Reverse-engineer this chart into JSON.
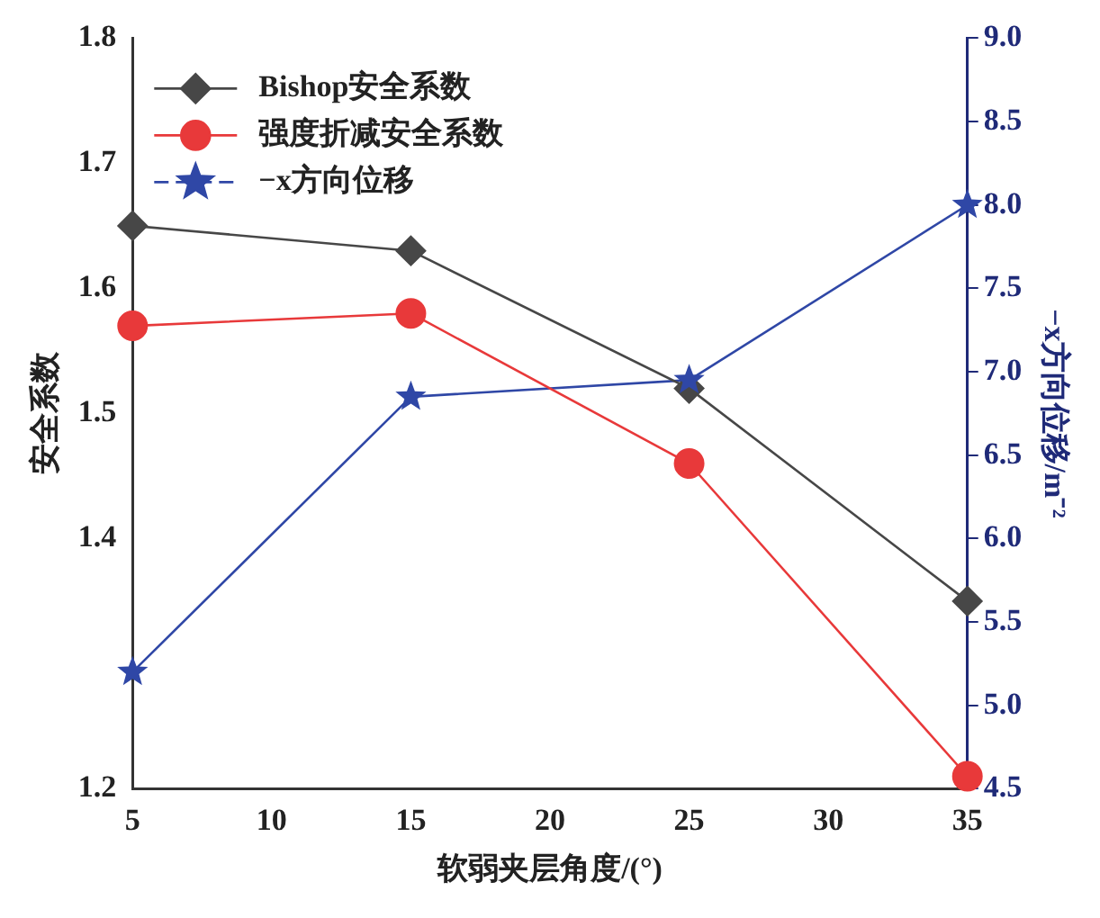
{
  "chart_data": {
    "type": "line",
    "xlabel": "软弱夹层角度/(°)",
    "ylabel": "安全系数",
    "y2label": "−x方向位移/m⁻²",
    "x": [
      5,
      15,
      25,
      35
    ],
    "series": [
      {
        "name": "Bishop安全系数",
        "color": "#474747",
        "values": [
          1.65,
          1.63,
          1.52,
          1.35
        ],
        "marker": "diamond"
      },
      {
        "name": "强度折减安全系数",
        "color": "#e8393a",
        "values": [
          1.57,
          1.58,
          1.46,
          1.21
        ],
        "marker": "circle"
      },
      {
        "name": "−x方向位移",
        "color": "#2f47a6",
        "values": [
          5.2,
          6.85,
          6.95,
          8.0
        ],
        "marker": "star",
        "axis": "y2"
      }
    ],
    "xlim": [
      5,
      35
    ],
    "xticks": [
      5,
      10,
      15,
      20,
      25,
      30,
      35
    ],
    "ylim": [
      1.2,
      1.8
    ],
    "yticks": [
      1.2,
      1.4,
      1.5,
      1.6,
      1.7,
      1.8
    ],
    "y2lim": [
      4.5,
      9.0
    ],
    "y2ticks": [
      {
        "value": 4.5,
        "label": "4.5"
      },
      {
        "value": 5,
        "label": "5.0"
      },
      {
        "value": 5.5,
        "label": "5.5"
      },
      {
        "value": 6,
        "label": "6.0"
      },
      {
        "value": 6.5,
        "label": "6.5"
      },
      {
        "value": 7,
        "label": "7.0"
      },
      {
        "value": 7.5,
        "label": "7.5"
      },
      {
        "value": 8,
        "label": "8.0"
      },
      {
        "value": 8.5,
        "label": "8.5"
      },
      {
        "value": 9,
        "label": "9.0"
      }
    ],
    "legend": "top left",
    "grid": false
  }
}
